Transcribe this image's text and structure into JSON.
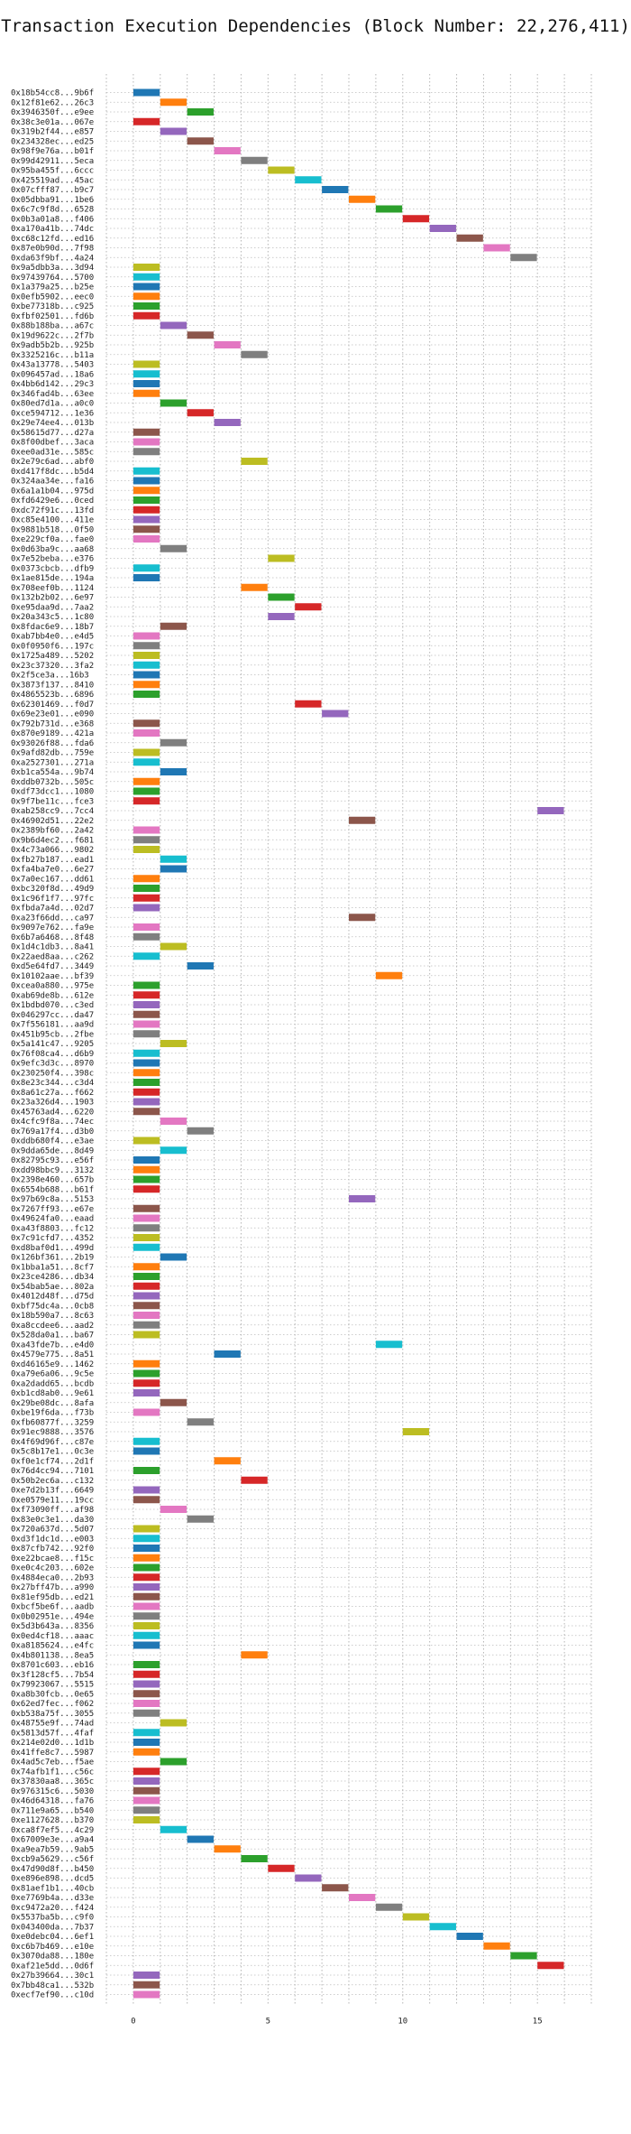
{
  "chart_data": {
    "type": "bar",
    "orientation": "horizontal",
    "title": "Transaction Execution Dependencies (Block Number: 22,276,411)",
    "xlabel": "",
    "ylabel": "",
    "xlim": [
      -1,
      17
    ],
    "xticks": [
      0,
      5,
      10,
      15
    ],
    "grid": "dotted",
    "legend": "none",
    "palette": [
      "#1f77b4",
      "#ff7f0e",
      "#2ca02c",
      "#d62728",
      "#9467bd",
      "#8c564b",
      "#e377c2",
      "#7f7f7f",
      "#bcbd22",
      "#17becf"
    ],
    "bar_span": 1,
    "transactions": [
      {
        "tx": "0x18b54cc8...9b6f",
        "start": 0
      },
      {
        "tx": "0x12f81e62...26c3",
        "start": 1
      },
      {
        "tx": "0x3946350f...e9ee",
        "start": 2
      },
      {
        "tx": "0x38c3e01a...067e",
        "start": 0
      },
      {
        "tx": "0x319b2f44...e857",
        "start": 1
      },
      {
        "tx": "0x234328ec...ed25",
        "start": 2
      },
      {
        "tx": "0x98f9e76a...b01f",
        "start": 3
      },
      {
        "tx": "0x99d42911...5eca",
        "start": 4
      },
      {
        "tx": "0x95ba455f...6ccc",
        "start": 5
      },
      {
        "tx": "0x425519ad...45ac",
        "start": 6
      },
      {
        "tx": "0x07cfff87...b9c7",
        "start": 7
      },
      {
        "tx": "0x05dbba91...1be6",
        "start": 8
      },
      {
        "tx": "0x6c7c9f8d...6528",
        "start": 9
      },
      {
        "tx": "0x0b3a01a8...f406",
        "start": 10
      },
      {
        "tx": "0xa170a41b...74dc",
        "start": 11
      },
      {
        "tx": "0xc68c12fd...ed16",
        "start": 12
      },
      {
        "tx": "0x87e0b90d...7f98",
        "start": 13
      },
      {
        "tx": "0xda63f9bf...4a24",
        "start": 14
      },
      {
        "tx": "0x9a5dbb3a...3d94",
        "start": 0
      },
      {
        "tx": "0x97439764...5700",
        "start": 0
      },
      {
        "tx": "0x1a379a25...b25e",
        "start": 0
      },
      {
        "tx": "0x0efb5902...eec0",
        "start": 0
      },
      {
        "tx": "0xbe77318b...c925",
        "start": 0
      },
      {
        "tx": "0xfbf02501...fd6b",
        "start": 0
      },
      {
        "tx": "0x88b188ba...a67c",
        "start": 1
      },
      {
        "tx": "0x19d9622c...2f7b",
        "start": 2
      },
      {
        "tx": "0x9adb5b2b...925b",
        "start": 3
      },
      {
        "tx": "0x3325216c...b11a",
        "start": 4
      },
      {
        "tx": "0x43a13778...5403",
        "start": 0
      },
      {
        "tx": "0x096457ad...18a6",
        "start": 0
      },
      {
        "tx": "0x4bb6d142...29c3",
        "start": 0
      },
      {
        "tx": "0x346fad4b...63ee",
        "start": 0
      },
      {
        "tx": "0x80ed7d1a...a0c0",
        "start": 1
      },
      {
        "tx": "0xce594712...1e36",
        "start": 2
      },
      {
        "tx": "0x29e74ee4...013b",
        "start": 3
      },
      {
        "tx": "0x58615d77...d27a",
        "start": 0
      },
      {
        "tx": "0x8f00dbef...3aca",
        "start": 0
      },
      {
        "tx": "0xee0ad31e...585c",
        "start": 0
      },
      {
        "tx": "0x2e79c6ad...abf0",
        "start": 4
      },
      {
        "tx": "0xd417f8dc...b5d4",
        "start": 0
      },
      {
        "tx": "0x324aa34e...fa16",
        "start": 0
      },
      {
        "tx": "0x6a1a1b04...975d",
        "start": 0
      },
      {
        "tx": "0xfd6429e6...0ced",
        "start": 0
      },
      {
        "tx": "0xdc72f91c...13fd",
        "start": 0
      },
      {
        "tx": "0xc85e4100...411e",
        "start": 0
      },
      {
        "tx": "0x9881b518...0f50",
        "start": 0
      },
      {
        "tx": "0xe229cf0a...fae0",
        "start": 0
      },
      {
        "tx": "0x0d63ba9c...aa68",
        "start": 1
      },
      {
        "tx": "0x7e52beba...e376",
        "start": 5
      },
      {
        "tx": "0x0373cbcb...dfb9",
        "start": 0
      },
      {
        "tx": "0x1ae815de...194a",
        "start": 0
      },
      {
        "tx": "0x708eef0b...1124",
        "start": 4
      },
      {
        "tx": "0x132b2b02...6e97",
        "start": 5
      },
      {
        "tx": "0xe95daa9d...7aa2",
        "start": 6
      },
      {
        "tx": "0x20a343c5...1c80",
        "start": 5
      },
      {
        "tx": "0x8fdac6e9...18b7",
        "start": 1
      },
      {
        "tx": "0xab7bb4e0...e4d5",
        "start": 0
      },
      {
        "tx": "0x0f0950f6...197c",
        "start": 0
      },
      {
        "tx": "0x1725a489...5202",
        "start": 0
      },
      {
        "tx": "0x23c37320...3fa2",
        "start": 0
      },
      {
        "tx": "0x2f5ce3a...16b3",
        "start": 0
      },
      {
        "tx": "0x3873f137...8410",
        "start": 0
      },
      {
        "tx": "0x4865523b...6896",
        "start": 0
      },
      {
        "tx": "0x62301469...f0d7",
        "start": 6
      },
      {
        "tx": "0x69e23e01...e090",
        "start": 7
      },
      {
        "tx": "0x792b731d...e368",
        "start": 0
      },
      {
        "tx": "0x870e9189...421a",
        "start": 0
      },
      {
        "tx": "0x93026f88...fda6",
        "start": 1
      },
      {
        "tx": "0x9afd82db...759e",
        "start": 0
      },
      {
        "tx": "0xa2527301...271a",
        "start": 0
      },
      {
        "tx": "0xb1ca554a...9b74",
        "start": 1
      },
      {
        "tx": "0xddb0732b...505c",
        "start": 0
      },
      {
        "tx": "0xdf73dcc1...1080",
        "start": 0
      },
      {
        "tx": "0x9f7be11c...fce3",
        "start": 0
      },
      {
        "tx": "0xab258cc9...7cc4",
        "start": 15
      },
      {
        "tx": "0x46902d51...22e2",
        "start": 8
      },
      {
        "tx": "0x2389bf60...2a42",
        "start": 0
      },
      {
        "tx": "0x9b6d4ec2...f681",
        "start": 0
      },
      {
        "tx": "0x4c73a066...9802",
        "start": 0
      },
      {
        "tx": "0xfb27b187...ead1",
        "start": 1
      },
      {
        "tx": "0xfa4ba7e0...6e27",
        "start": 1
      },
      {
        "tx": "0x7a0ec167...dd61",
        "start": 0
      },
      {
        "tx": "0xbc320f8d...49d9",
        "start": 0
      },
      {
        "tx": "0x1c96f1f7...97fc",
        "start": 0
      },
      {
        "tx": "0xfbda7a4d...02d7",
        "start": 0
      },
      {
        "tx": "0xa23f66dd...ca97",
        "start": 8
      },
      {
        "tx": "0x9097e762...fa9e",
        "start": 0
      },
      {
        "tx": "0x6b7a6468...8f48",
        "start": 0
      },
      {
        "tx": "0x1d4c1db3...8a41",
        "start": 1
      },
      {
        "tx": "0x22aed8aa...c262",
        "start": 0
      },
      {
        "tx": "0xd5e64fd7...3449",
        "start": 2
      },
      {
        "tx": "0x10102aae...bf39",
        "start": 9
      },
      {
        "tx": "0xcea0a880...975e",
        "start": 0
      },
      {
        "tx": "0xab69de8b...612e",
        "start": 0
      },
      {
        "tx": "0x1bdbd070...c3ed",
        "start": 0
      },
      {
        "tx": "0x046297cc...da47",
        "start": 0
      },
      {
        "tx": "0x7f556181...aa9d",
        "start": 0
      },
      {
        "tx": "0x451b95cb...2fbe",
        "start": 0
      },
      {
        "tx": "0x5a141c47...9205",
        "start": 1
      },
      {
        "tx": "0x76f08ca4...d6b9",
        "start": 0
      },
      {
        "tx": "0x9efc3d3c...8970",
        "start": 0
      },
      {
        "tx": "0x230250f4...398c",
        "start": 0
      },
      {
        "tx": "0x8e23c344...c3d4",
        "start": 0
      },
      {
        "tx": "0x8a61c27a...f662",
        "start": 0
      },
      {
        "tx": "0x23a326d4...1903",
        "start": 0
      },
      {
        "tx": "0x45763ad4...6220",
        "start": 0
      },
      {
        "tx": "0x4cfc9f8a...74ec",
        "start": 1
      },
      {
        "tx": "0x769a17f4...d3b0",
        "start": 2
      },
      {
        "tx": "0xddb680f4...e3ae",
        "start": 0
      },
      {
        "tx": "0x9dda65de...8d49",
        "start": 1
      },
      {
        "tx": "0x82795c93...e56f",
        "start": 0
      },
      {
        "tx": "0xdd98bbc9...3132",
        "start": 0
      },
      {
        "tx": "0x2398e460...657b",
        "start": 0
      },
      {
        "tx": "0x6554b688...b61f",
        "start": 0
      },
      {
        "tx": "0x97b69c8a...5153",
        "start": 8
      },
      {
        "tx": "0x7267ff93...e67e",
        "start": 0
      },
      {
        "tx": "0x49624fa0...eaad",
        "start": 0
      },
      {
        "tx": "0xa43f8803...fc12",
        "start": 0
      },
      {
        "tx": "0x7c91cfd7...4352",
        "start": 0
      },
      {
        "tx": "0xd8baf0d1...499d",
        "start": 0
      },
      {
        "tx": "0x126bf361...2b19",
        "start": 1
      },
      {
        "tx": "0x1bba1a51...8cf7",
        "start": 0
      },
      {
        "tx": "0x23ce4286...db34",
        "start": 0
      },
      {
        "tx": "0x54bab5ae...802a",
        "start": 0
      },
      {
        "tx": "0x4012d48f...d75d",
        "start": 0
      },
      {
        "tx": "0xbf75dc4a...0cb8",
        "start": 0
      },
      {
        "tx": "0x18b590a7...8c63",
        "start": 0
      },
      {
        "tx": "0xa8ccdee6...aad2",
        "start": 0
      },
      {
        "tx": "0x528da0a1...ba67",
        "start": 0
      },
      {
        "tx": "0xa43fde7b...e4d0",
        "start": 9
      },
      {
        "tx": "0x4579e775...8a51",
        "start": 3
      },
      {
        "tx": "0xd46165e9...1462",
        "start": 0
      },
      {
        "tx": "0xa79e6a06...9c5e",
        "start": 0
      },
      {
        "tx": "0xa2dadd65...bcdb",
        "start": 0
      },
      {
        "tx": "0xb1cd8ab0...9e61",
        "start": 0
      },
      {
        "tx": "0x29be08dc...8afa",
        "start": 1
      },
      {
        "tx": "0xbe19f6da...f73b",
        "start": 0
      },
      {
        "tx": "0xfb60877f...3259",
        "start": 2
      },
      {
        "tx": "0x91ec9888...3576",
        "start": 10
      },
      {
        "tx": "0x4f69d96f...c87e",
        "start": 0
      },
      {
        "tx": "0x5c8b17e1...0c3e",
        "start": 0
      },
      {
        "tx": "0xf0e1cf74...2d1f",
        "start": 3
      },
      {
        "tx": "0x76d4cc94...7101",
        "start": 0
      },
      {
        "tx": "0x50b2ec6a...c132",
        "start": 4
      },
      {
        "tx": "0xe7d2b13f...6649",
        "start": 0
      },
      {
        "tx": "0xe0579e11...19cc",
        "start": 0
      },
      {
        "tx": "0xf73090ff...af98",
        "start": 1
      },
      {
        "tx": "0x83e0c3e1...da30",
        "start": 2
      },
      {
        "tx": "0x720a637d...5d07",
        "start": 0
      },
      {
        "tx": "0xd3f1dc1d...e003",
        "start": 0
      },
      {
        "tx": "0x87cfb742...92f0",
        "start": 0
      },
      {
        "tx": "0xe22bcae8...f15c",
        "start": 0
      },
      {
        "tx": "0xe0c4c203...602e",
        "start": 0
      },
      {
        "tx": "0x4884eca0...2b93",
        "start": 0
      },
      {
        "tx": "0x27bff47b...a990",
        "start": 0
      },
      {
        "tx": "0x81ef95db...ed21",
        "start": 0
      },
      {
        "tx": "0xbcf5be6f...aadb",
        "start": 0
      },
      {
        "tx": "0x0b02951e...494e",
        "start": 0
      },
      {
        "tx": "0x5d3b643a...8356",
        "start": 0
      },
      {
        "tx": "0x0ed4cf18...aaac",
        "start": 0
      },
      {
        "tx": "0xa8185624...e4fc",
        "start": 0
      },
      {
        "tx": "0x4b801138...8ea5",
        "start": 4
      },
      {
        "tx": "0x8701c603...eb16",
        "start": 0
      },
      {
        "tx": "0x3f128cf5...7b54",
        "start": 0
      },
      {
        "tx": "0x79923067...5515",
        "start": 0
      },
      {
        "tx": "0xa8b30fcb...0e65",
        "start": 0
      },
      {
        "tx": "0x62ed7fec...f062",
        "start": 0
      },
      {
        "tx": "0xb538a75f...3055",
        "start": 0
      },
      {
        "tx": "0x48755e9f...74ad",
        "start": 1
      },
      {
        "tx": "0x5813d57f...4faf",
        "start": 0
      },
      {
        "tx": "0x214e02d0...1d1b",
        "start": 0
      },
      {
        "tx": "0x41ffe8c7...5987",
        "start": 0
      },
      {
        "tx": "0x4ad5c7eb...f5ae",
        "start": 1
      },
      {
        "tx": "0x74afb1f1...c56c",
        "start": 0
      },
      {
        "tx": "0x37830aa8...365c",
        "start": 0
      },
      {
        "tx": "0x976315c6...5030",
        "start": 0
      },
      {
        "tx": "0x46d64318...fa76",
        "start": 0
      },
      {
        "tx": "0x711e9a65...b540",
        "start": 0
      },
      {
        "tx": "0xe1127628...b370",
        "start": 0
      },
      {
        "tx": "0xca8f7ef5...4c29",
        "start": 1
      },
      {
        "tx": "0x67009e3e...a9a4",
        "start": 2
      },
      {
        "tx": "0xa9ea7b59...9ab5",
        "start": 3
      },
      {
        "tx": "0xcb9a5629...c56f",
        "start": 4
      },
      {
        "tx": "0x47d90d8f...b450",
        "start": 5
      },
      {
        "tx": "0xe896e898...dcd5",
        "start": 6
      },
      {
        "tx": "0x81aef1b1...40cb",
        "start": 7
      },
      {
        "tx": "0xe7769b4a...d33e",
        "start": 8
      },
      {
        "tx": "0xc9472a20...f424",
        "start": 9
      },
      {
        "tx": "0x5537ba5b...c9f0",
        "start": 10
      },
      {
        "tx": "0x043400da...7b37",
        "start": 11
      },
      {
        "tx": "0xe0debc04...6ef1",
        "start": 12
      },
      {
        "tx": "0xc6b7b469...e10e",
        "start": 13
      },
      {
        "tx": "0x3070da88...180e",
        "start": 14
      },
      {
        "tx": "0xaf21e5dd...0d6f",
        "start": 15
      },
      {
        "tx": "0x27b39664...30c1",
        "start": 0
      },
      {
        "tx": "0x7bb48ca1...532b",
        "start": 0
      },
      {
        "tx": "0xecf7ef90...c10d",
        "start": 0
      }
    ]
  }
}
